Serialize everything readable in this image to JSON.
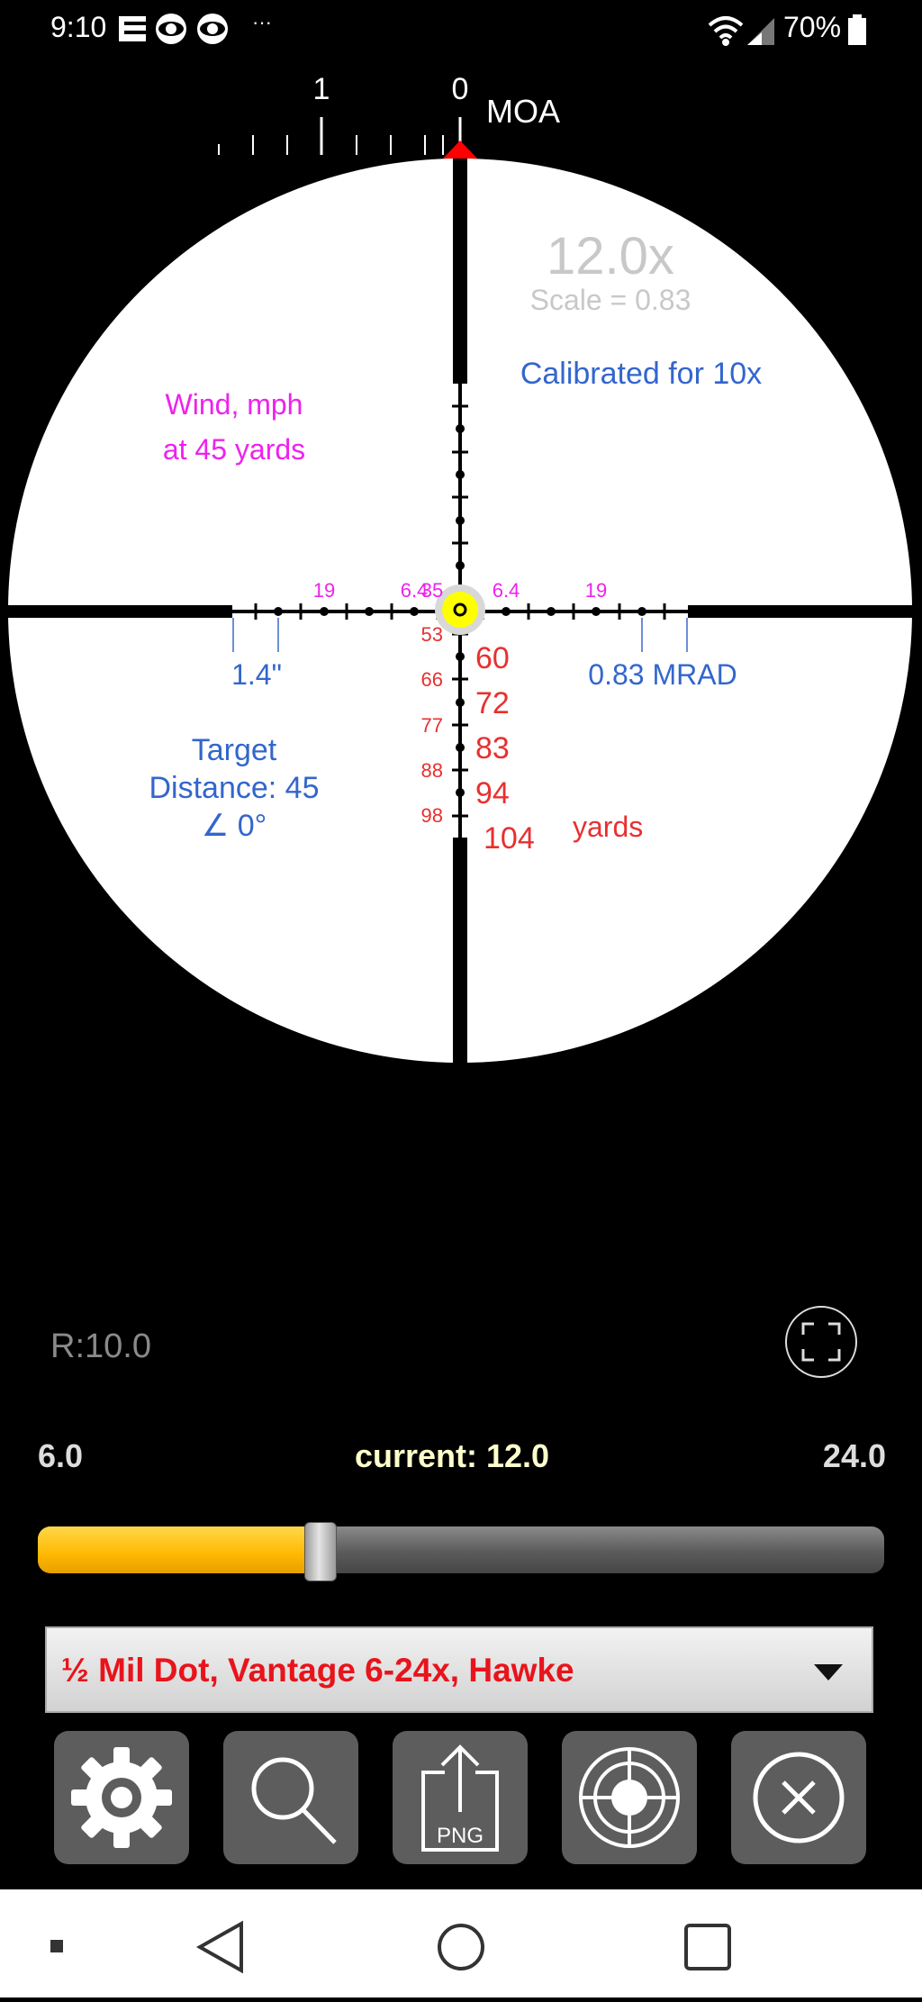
{
  "status_bar": {
    "time": "9:10",
    "battery": "70%",
    "overflow_dots": "···",
    "icons": [
      "e-app-icon",
      "cbs-eye-icon",
      "cbs-eye-icon",
      "wifi-icon",
      "signal-icon",
      "battery-icon"
    ]
  },
  "scope": {
    "moa_scale": {
      "label_1": "1",
      "label_0": "0",
      "unit": "MOA"
    },
    "magnification": "12.0x",
    "scale_text": "Scale = 0.83",
    "calibrated": "Calibrated for 10x",
    "wind_label_line1": "Wind, mph",
    "wind_label_line2": "at 45 yards",
    "wind_left_outer": "19",
    "wind_left_inner": "6.4",
    "wind_center": "35",
    "wind_right_inner": "6.4",
    "wind_right_outer": "19",
    "left_spacing": "1.4\"",
    "right_spacing": "0.83 MRAD",
    "target_line1": "Target",
    "target_line2": "Distance: 45",
    "target_line3": "∠ 0°",
    "drop_small": [
      "53",
      "66",
      "77",
      "88",
      "98"
    ],
    "drop_large": [
      "60",
      "72",
      "83",
      "94",
      "104"
    ],
    "yards_label": "yards"
  },
  "controls": {
    "range_readout": "R:10.0",
    "zoom_min": "6.0",
    "zoom_current": "current: 12.0",
    "zoom_max": "24.0",
    "zoom_position": 0.333,
    "reticle_selected": "½ Mil Dot, Vantage 6-24x, Hawke"
  },
  "toolbar": {
    "png_label": "PNG",
    "buttons": [
      "settings",
      "search",
      "export-png",
      "target",
      "close"
    ]
  },
  "colors": {
    "magenta": "#ee22ee",
    "blue": "#3366cc",
    "red": "#e83030",
    "yellow_fill": "#ffb800",
    "select_text": "#e8141b"
  }
}
